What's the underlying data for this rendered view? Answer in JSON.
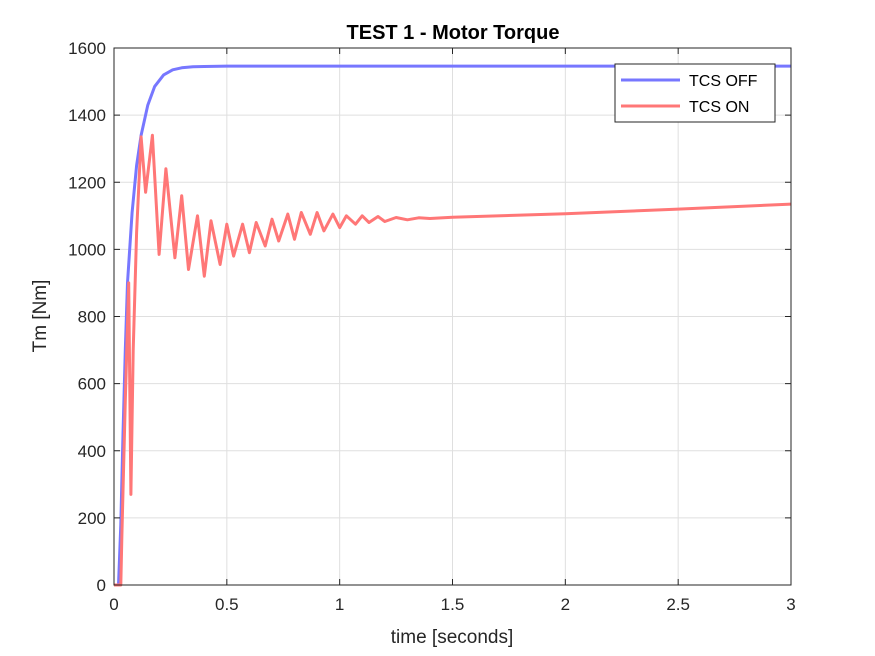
{
  "chart_data": {
    "type": "line",
    "title": "TEST 1 - Motor Torque",
    "xlabel": "time [seconds]",
    "ylabel": "Tm [Nm]",
    "xlim": [
      0,
      3
    ],
    "ylim": [
      0,
      1600
    ],
    "xticks": [
      0,
      0.5,
      1,
      1.5,
      2,
      2.5,
      3
    ],
    "xtick_labels": [
      "0",
      "0.5",
      "1",
      "1.5",
      "2",
      "2.5",
      "3"
    ],
    "yticks": [
      0,
      200,
      400,
      600,
      800,
      1000,
      1200,
      1400,
      1600
    ],
    "ytick_labels": [
      "0",
      "200",
      "400",
      "600",
      "800",
      "1000",
      "1200",
      "1400",
      "1600"
    ],
    "grid": true,
    "legend_location": "top-right",
    "series": [
      {
        "name": "TCS OFF",
        "color": "#7777ff",
        "x": [
          0,
          0.02,
          0.03,
          0.04,
          0.05,
          0.06,
          0.08,
          0.1,
          0.12,
          0.15,
          0.18,
          0.22,
          0.26,
          0.3,
          0.35,
          0.4,
          0.5,
          1.0,
          2.0,
          3.0
        ],
        "y": [
          0,
          0,
          180,
          450,
          700,
          900,
          1110,
          1250,
          1340,
          1430,
          1485,
          1520,
          1535,
          1541,
          1544,
          1545,
          1546,
          1546,
          1546,
          1546
        ]
      },
      {
        "name": "TCS ON",
        "color": "#ff7777",
        "x": [
          0,
          0.03,
          0.035,
          0.05,
          0.065,
          0.075,
          0.085,
          0.1,
          0.12,
          0.14,
          0.17,
          0.2,
          0.23,
          0.27,
          0.3,
          0.33,
          0.37,
          0.4,
          0.43,
          0.47,
          0.5,
          0.53,
          0.57,
          0.6,
          0.63,
          0.67,
          0.7,
          0.73,
          0.77,
          0.8,
          0.83,
          0.87,
          0.9,
          0.93,
          0.97,
          1.0,
          1.03,
          1.07,
          1.1,
          1.13,
          1.17,
          1.2,
          1.25,
          1.3,
          1.35,
          1.4,
          1.5,
          2.0,
          2.5,
          3.0
        ],
        "y": [
          0,
          0,
          150,
          550,
          900,
          270,
          700,
          1050,
          1335,
          1170,
          1340,
          985,
          1240,
          975,
          1160,
          940,
          1100,
          920,
          1085,
          955,
          1075,
          980,
          1075,
          990,
          1080,
          1010,
          1090,
          1025,
          1105,
          1030,
          1110,
          1045,
          1110,
          1055,
          1105,
          1065,
          1100,
          1075,
          1100,
          1080,
          1098,
          1083,
          1095,
          1088,
          1094,
          1092,
          1096,
          1106,
          1120,
          1135
        ]
      }
    ]
  }
}
